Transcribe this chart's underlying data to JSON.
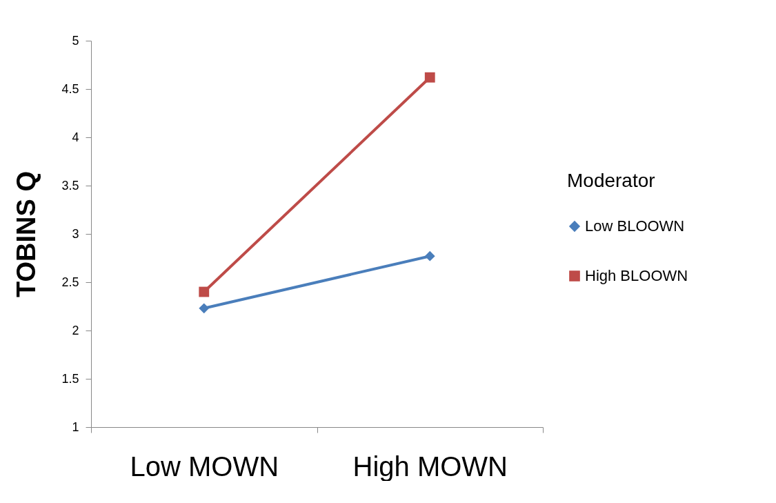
{
  "chart_data": {
    "type": "line",
    "ylabel": "TOBINS Q",
    "legend_title": "Moderator",
    "categories": [
      "Low MOWN",
      "High MOWN"
    ],
    "series": [
      {
        "name": "Low BLOOWN",
        "color": "#4a7ebb",
        "marker": "diamond",
        "values": [
          2.23,
          2.77
        ]
      },
      {
        "name": "High BLOOWN",
        "color": "#be4b48",
        "marker": "square",
        "values": [
          2.4,
          4.62
        ]
      }
    ],
    "ylim": [
      1,
      5
    ],
    "yticks": [
      1,
      1.5,
      2,
      2.5,
      3,
      3.5,
      4,
      4.5,
      5
    ],
    "grid": false,
    "legend": "right",
    "line_style": "solid"
  }
}
